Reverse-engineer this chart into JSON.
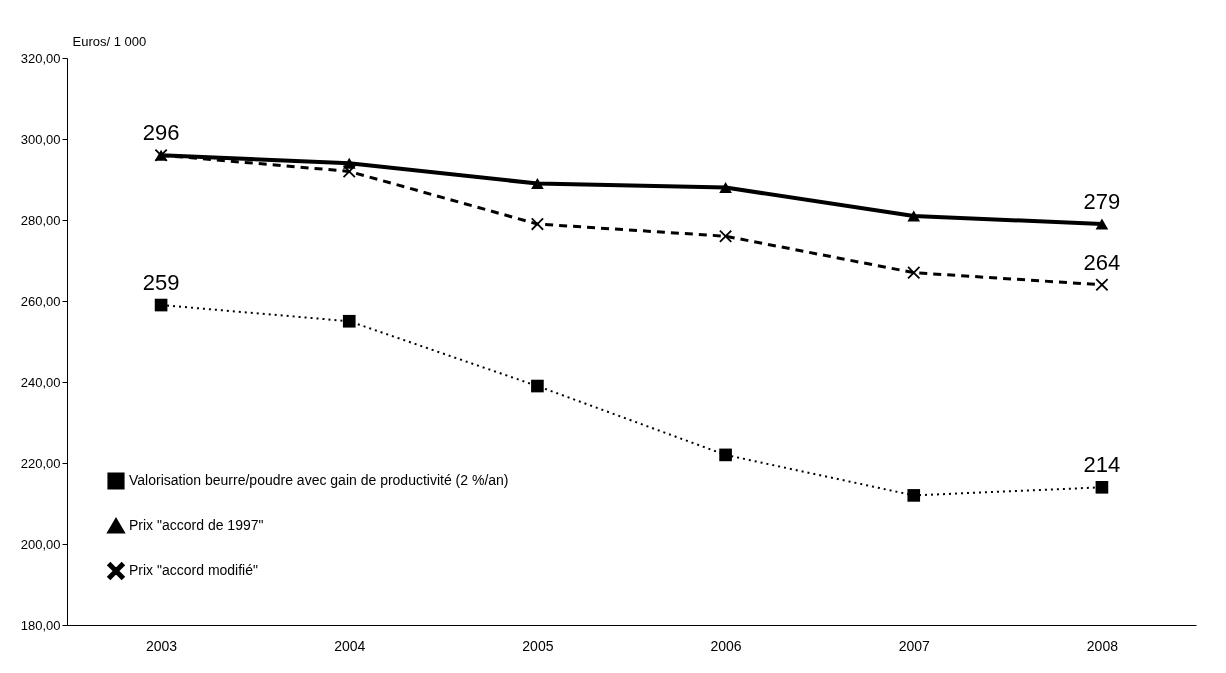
{
  "chart_data": {
    "type": "line",
    "ylabel": "Euros/ 1 000",
    "categories": [
      "2003",
      "2004",
      "2005",
      "2006",
      "2007",
      "2008"
    ],
    "series": [
      {
        "name": "Valorisation beurre/poudre avec gain de productivité (2 %/an)",
        "color": "#000000",
        "marker": "square",
        "line_style": "dotted",
        "values": [
          259,
          255,
          239,
          222,
          212,
          214
        ],
        "value_labels": [
          "259",
          null,
          null,
          null,
          null,
          "214"
        ]
      },
      {
        "name": "Prix \"accord de 1997\"",
        "color": "#000000",
        "marker": "triangle",
        "line_style": "solid",
        "values": [
          296,
          294,
          289,
          288,
          281,
          279
        ],
        "value_labels": [
          "296",
          null,
          null,
          null,
          null,
          "279"
        ]
      },
      {
        "name": "Prix \"accord modifié\"",
        "color": "#000000",
        "marker": "cross",
        "line_style": "dashed",
        "values": [
          296,
          292,
          279,
          276,
          267,
          264
        ],
        "value_labels": [
          null,
          null,
          null,
          null,
          null,
          "264"
        ]
      }
    ],
    "ylim": [
      180,
      320
    ],
    "yticks": [
      {
        "value": 180,
        "label": "180,00"
      },
      {
        "value": 200,
        "label": "200,00"
      },
      {
        "value": 220,
        "label": "220,00"
      },
      {
        "value": 240,
        "label": "240,00"
      },
      {
        "value": 260,
        "label": "260,00"
      },
      {
        "value": 280,
        "label": "280,00"
      },
      {
        "value": 300,
        "label": "300,00"
      },
      {
        "value": 320,
        "label": "320,00"
      }
    ],
    "grid": false,
    "legend": "bottom left"
  }
}
